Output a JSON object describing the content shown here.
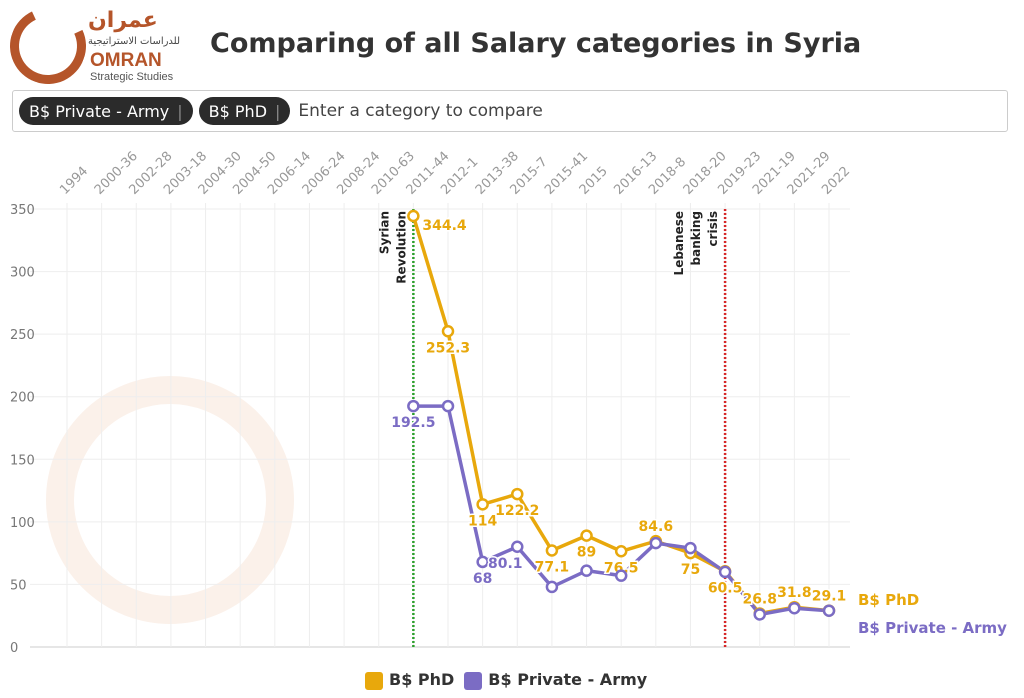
{
  "logo": {
    "arabic": "عمران",
    "arabic_sub": "للدراسات الاستراتيجية",
    "name": "OMRAN",
    "sub": "Strategic Studies"
  },
  "title": "Comparing of all Salary categories in Syria",
  "search": {
    "chips": [
      {
        "label": "B$ Private - Army"
      },
      {
        "label": "B$ PhD"
      }
    ],
    "placeholder": "Enter a category to compare"
  },
  "chart_data": {
    "type": "line",
    "title": "Comparing of all Salary categories in Syria",
    "categories": [
      "1994",
      "2000-36",
      "2002-28",
      "2003-18",
      "2004-30",
      "2004-50",
      "2006-14",
      "2006-24",
      "2008-24",
      "2010-63",
      "2011-44",
      "2012-1",
      "2013-38",
      "2015-7",
      "2015-41",
      "2015",
      "2016-13",
      "2018-8",
      "2018-20",
      "2019-23",
      "2021-19",
      "2021-29",
      "2022"
    ],
    "ylim": [
      0,
      350
    ],
    "yticks": [
      0,
      50,
      100,
      150,
      200,
      250,
      300,
      350
    ],
    "series": [
      {
        "name": "B$ PhD",
        "color": "#e8a80c",
        "values": [
          null,
          null,
          null,
          null,
          null,
          null,
          null,
          null,
          null,
          null,
          344.4,
          252.3,
          114,
          122.2,
          77.1,
          89,
          76.5,
          84.6,
          75,
          60.5,
          26.8,
          31.8,
          29.1
        ],
        "labels": [
          null,
          null,
          null,
          null,
          null,
          null,
          null,
          null,
          null,
          null,
          "344.4",
          "252.3",
          "114",
          "122.2",
          "77.1",
          "89",
          "76.5",
          "84.6",
          "75",
          "60.5",
          "26.8",
          "31.8",
          "29.1"
        ]
      },
      {
        "name": "B$ Private - Army",
        "color": "#7b6cc4",
        "values": [
          null,
          null,
          null,
          null,
          null,
          null,
          null,
          null,
          null,
          null,
          192.5,
          192.5,
          68,
          80.1,
          48,
          61,
          57,
          83,
          79,
          60,
          26,
          31,
          29
        ],
        "labels": [
          null,
          null,
          null,
          null,
          null,
          null,
          null,
          null,
          null,
          null,
          "192.5",
          null,
          "68",
          "80.1",
          null,
          null,
          null,
          null,
          null,
          null,
          null,
          null,
          null
        ]
      }
    ],
    "annotations": [
      {
        "label_lines": [
          "Syrian",
          "Revolution"
        ],
        "at": "2011-44",
        "color": "#2ca02c"
      },
      {
        "label_lines": [
          "Lebanese",
          "banking",
          "crisis"
        ],
        "at": "2019-23",
        "color": "#d62728"
      }
    ],
    "legend": "bottom-center",
    "grid": true
  }
}
